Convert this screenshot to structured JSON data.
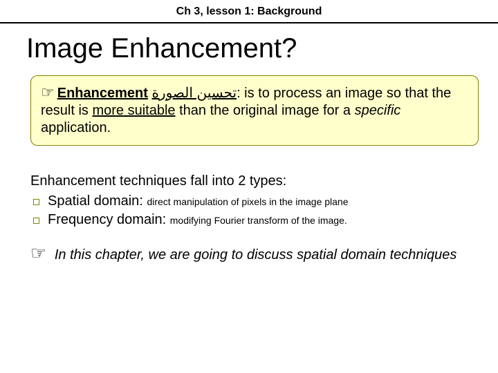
{
  "header": {
    "breadcrumb": "Ch 3, lesson 1: Background"
  },
  "title": "Image Enhancement?",
  "callout": {
    "hand_icon": "☞",
    "term": "Enhancement",
    "arabic": "تحسين الصورة",
    "def_part1": ": is to process an image so that the result is ",
    "more_suitable": "more suitable",
    "def_part2": " than the original image for a ",
    "specific": "specific",
    "def_part3": " application."
  },
  "body": {
    "intro": "Enhancement techniques fall into 2 types:",
    "items": [
      {
        "label": "Spatial domain:",
        "detail": "direct manipulation of pixels in the image plane"
      },
      {
        "label": "Frequency domain:",
        "detail": "modifying Fourier transform of the image."
      }
    ]
  },
  "note": {
    "hand_icon": "☞",
    "text": "In this chapter, we are going to discuss spatial domain techniques"
  },
  "colors": {
    "callout_bg": "#ffffcc",
    "callout_border": "#808000",
    "bullet_border": "#808000",
    "text": "#000000",
    "background": "#ffffff"
  }
}
